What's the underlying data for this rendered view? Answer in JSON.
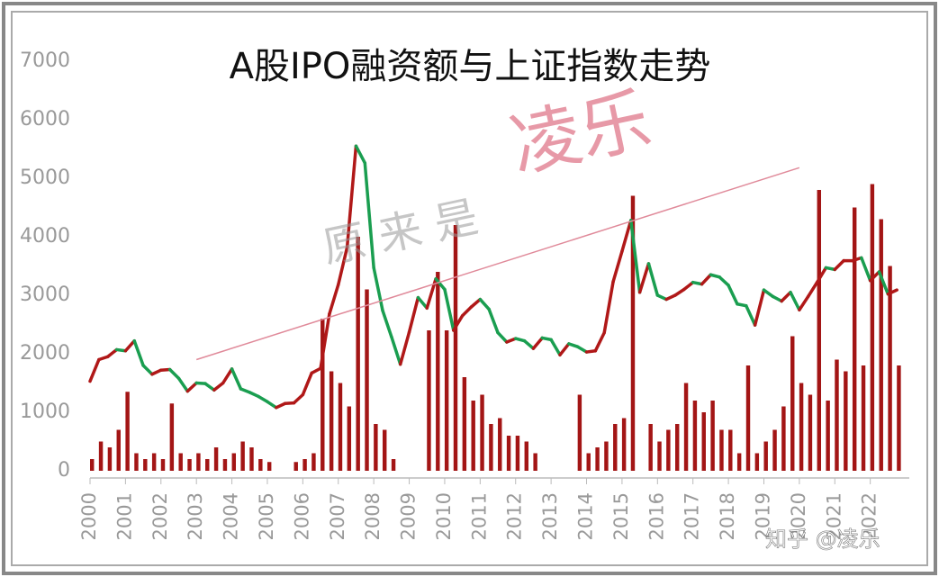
{
  "chart_data": {
    "type": "combo",
    "title": "A股IPO融资额与上证指数走势",
    "watermarks": [
      "原 来 是",
      "凌乐",
      "知乎 @凌乐"
    ],
    "x": [
      2000,
      2000.25,
      2000.5,
      2000.75,
      2001,
      2001.25,
      2001.5,
      2001.75,
      2002,
      2002.25,
      2002.5,
      2002.75,
      2003,
      2003.25,
      2003.5,
      2003.75,
      2004,
      2004.25,
      2004.5,
      2004.75,
      2005,
      2005.25,
      2005.5,
      2005.75,
      2006,
      2006.25,
      2006.5,
      2006.75,
      2007,
      2007.25,
      2007.5,
      2007.75,
      2008,
      2008.25,
      2008.5,
      2008.75,
      2009,
      2009.25,
      2009.5,
      2009.75,
      2010,
      2010.25,
      2010.5,
      2010.75,
      2011,
      2011.25,
      2011.5,
      2011.75,
      2012,
      2012.25,
      2012.5,
      2012.75,
      2013,
      2013.25,
      2013.5,
      2013.75,
      2014,
      2014.25,
      2014.5,
      2014.75,
      2015,
      2015.25,
      2015.5,
      2015.75,
      2016,
      2016.25,
      2016.5,
      2016.75,
      2017,
      2017.25,
      2017.5,
      2017.75,
      2018,
      2018.25,
      2018.5,
      2018.75,
      2019,
      2019.25,
      2019.5,
      2019.75,
      2020,
      2020.25,
      2020.5,
      2020.75,
      2021,
      2021.25,
      2021.5,
      2021.75,
      2022,
      2022.25,
      2022.5,
      2022.75
    ],
    "series": [
      {
        "kind": "bar",
        "color": "#a31515",
        "values": [
          200,
          500,
          400,
          700,
          1350,
          300,
          200,
          300,
          200,
          1150,
          300,
          200,
          300,
          200,
          400,
          200,
          300,
          500,
          400,
          200,
          150,
          0,
          0,
          150,
          200,
          300,
          2600,
          1700,
          1500,
          1100,
          4000,
          3100,
          800,
          700,
          200,
          0,
          0,
          0,
          2400,
          3400,
          2400,
          4200,
          1600,
          1200,
          1300,
          800,
          900,
          600,
          600,
          500,
          300,
          0,
          0,
          0,
          0,
          1300,
          300,
          400,
          500,
          800,
          900,
          4700,
          0,
          800,
          500,
          700,
          800,
          1500,
          1200,
          1000,
          1200,
          700,
          700,
          300,
          1800,
          300,
          500,
          700,
          1100,
          2300,
          1500,
          1300,
          4800,
          1200,
          1900,
          1700,
          4500,
          1800,
          4900,
          4300,
          3500,
          1800
        ]
      },
      {
        "kind": "line",
        "color": "#1a9e50",
        "up_color": "#b01818",
        "values": [
          1530,
          1900,
          1950,
          2070,
          2050,
          2220,
          1800,
          1650,
          1720,
          1730,
          1580,
          1360,
          1500,
          1490,
          1380,
          1500,
          1740,
          1400,
          1340,
          1270,
          1180,
          1080,
          1150,
          1160,
          1300,
          1670,
          1750,
          2680,
          3180,
          3820,
          5550,
          5260,
          3470,
          2740,
          2290,
          1820,
          2370,
          2960,
          2780,
          3280,
          3100,
          2400,
          2650,
          2800,
          2930,
          2760,
          2360,
          2200,
          2260,
          2220,
          2090,
          2270,
          2240,
          1980,
          2170,
          2120,
          2030,
          2050,
          2360,
          3230,
          3750,
          4280,
          3050,
          3540,
          3000,
          2930,
          3000,
          3100,
          3220,
          3190,
          3350,
          3310,
          3170,
          2850,
          2820,
          2490,
          3090,
          2980,
          2900,
          3050,
          2750,
          2980,
          3220,
          3470,
          3440,
          3590,
          3590,
          3640,
          3250,
          3400,
          3020,
          3090
        ]
      }
    ],
    "trendline": {
      "color": "#e08a9a",
      "x": [
        2003,
        2020
      ],
      "y": [
        1900,
        5180
      ]
    },
    "xlim": [
      2000,
      2023.1
    ],
    "xticks": [
      2000,
      2001,
      2002,
      2003,
      2004,
      2005,
      2006,
      2007,
      2008,
      2009,
      2010,
      2011,
      2012,
      2013,
      2014,
      2015,
      2016,
      2017,
      2018,
      2019,
      2020,
      2021,
      2022
    ],
    "ylim": [
      0,
      7000
    ],
    "yticks": [
      0,
      1000,
      2000,
      3000,
      4000,
      5000,
      6000,
      7000
    ]
  }
}
